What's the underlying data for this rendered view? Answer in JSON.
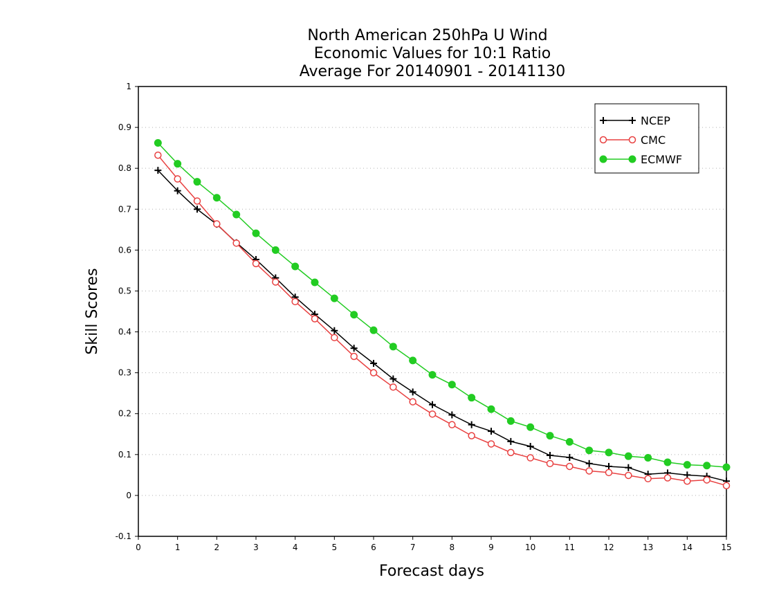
{
  "chart_data": {
    "type": "line",
    "title_lines": [
      "North American 250hPa U Wind",
      "Economic Values for 10:1 Ratio",
      "Average For 20140901 - 20141130"
    ],
    "xlabel": "Forecast days",
    "ylabel": "Skill Scores",
    "xlim": [
      0,
      15
    ],
    "ylim": [
      -0.1,
      1
    ],
    "xticks": [
      0,
      1,
      2,
      3,
      4,
      5,
      6,
      7,
      8,
      9,
      10,
      11,
      12,
      13,
      14,
      15
    ],
    "xtick_labels": [
      "0",
      "1",
      "2",
      "3",
      "4",
      "5",
      "6",
      "7",
      "8",
      "9",
      "10",
      "11",
      "12",
      "13",
      "14",
      "15"
    ],
    "yticks": [
      -0.1,
      0,
      0.1,
      0.2,
      0.3,
      0.4,
      0.5,
      0.6,
      0.7,
      0.8,
      0.9,
      1
    ],
    "ytick_labels": [
      "-0.1",
      "0",
      "0.1",
      "0.2",
      "0.3",
      "0.4",
      "0.5",
      "0.6",
      "0.7",
      "0.8",
      "0.9",
      "1"
    ],
    "grid": true,
    "legend_position": "top-right",
    "x": [
      0.5,
      1,
      1.5,
      2,
      2.5,
      3,
      3.5,
      4,
      4.5,
      5,
      5.5,
      6,
      6.5,
      7,
      7.5,
      8,
      8.5,
      9,
      9.5,
      10,
      10.5,
      11,
      11.5,
      12,
      12.5,
      13,
      13.5,
      14,
      14.5,
      15
    ],
    "series": [
      {
        "name": "NCEP",
        "color": "#000000",
        "marker": "plus",
        "values": [
          0.795,
          0.745,
          0.7,
          0.663,
          0.618,
          0.577,
          0.532,
          0.485,
          0.443,
          0.403,
          0.36,
          0.323,
          0.285,
          0.253,
          0.222,
          0.197,
          0.173,
          0.157,
          0.132,
          0.12,
          0.098,
          0.093,
          0.078,
          0.071,
          0.068,
          0.052,
          0.055,
          0.05,
          0.047,
          0.035
        ]
      },
      {
        "name": "CMC",
        "color": "#e84040",
        "marker": "open-circle",
        "values": [
          0.832,
          0.774,
          0.72,
          0.664,
          0.617,
          0.567,
          0.522,
          0.474,
          0.432,
          0.386,
          0.34,
          0.3,
          0.265,
          0.229,
          0.199,
          0.173,
          0.146,
          0.126,
          0.105,
          0.092,
          0.078,
          0.071,
          0.06,
          0.056,
          0.049,
          0.041,
          0.043,
          0.035,
          0.038,
          0.024
        ]
      },
      {
        "name": "ECMWF",
        "color": "#22cc22",
        "marker": "filled-circle",
        "values": [
          0.862,
          0.811,
          0.767,
          0.728,
          0.687,
          0.641,
          0.6,
          0.56,
          0.521,
          0.482,
          0.442,
          0.404,
          0.364,
          0.33,
          0.295,
          0.271,
          0.239,
          0.211,
          0.182,
          0.167,
          0.146,
          0.131,
          0.11,
          0.105,
          0.096,
          0.092,
          0.081,
          0.075,
          0.073,
          0.069
        ]
      }
    ]
  }
}
